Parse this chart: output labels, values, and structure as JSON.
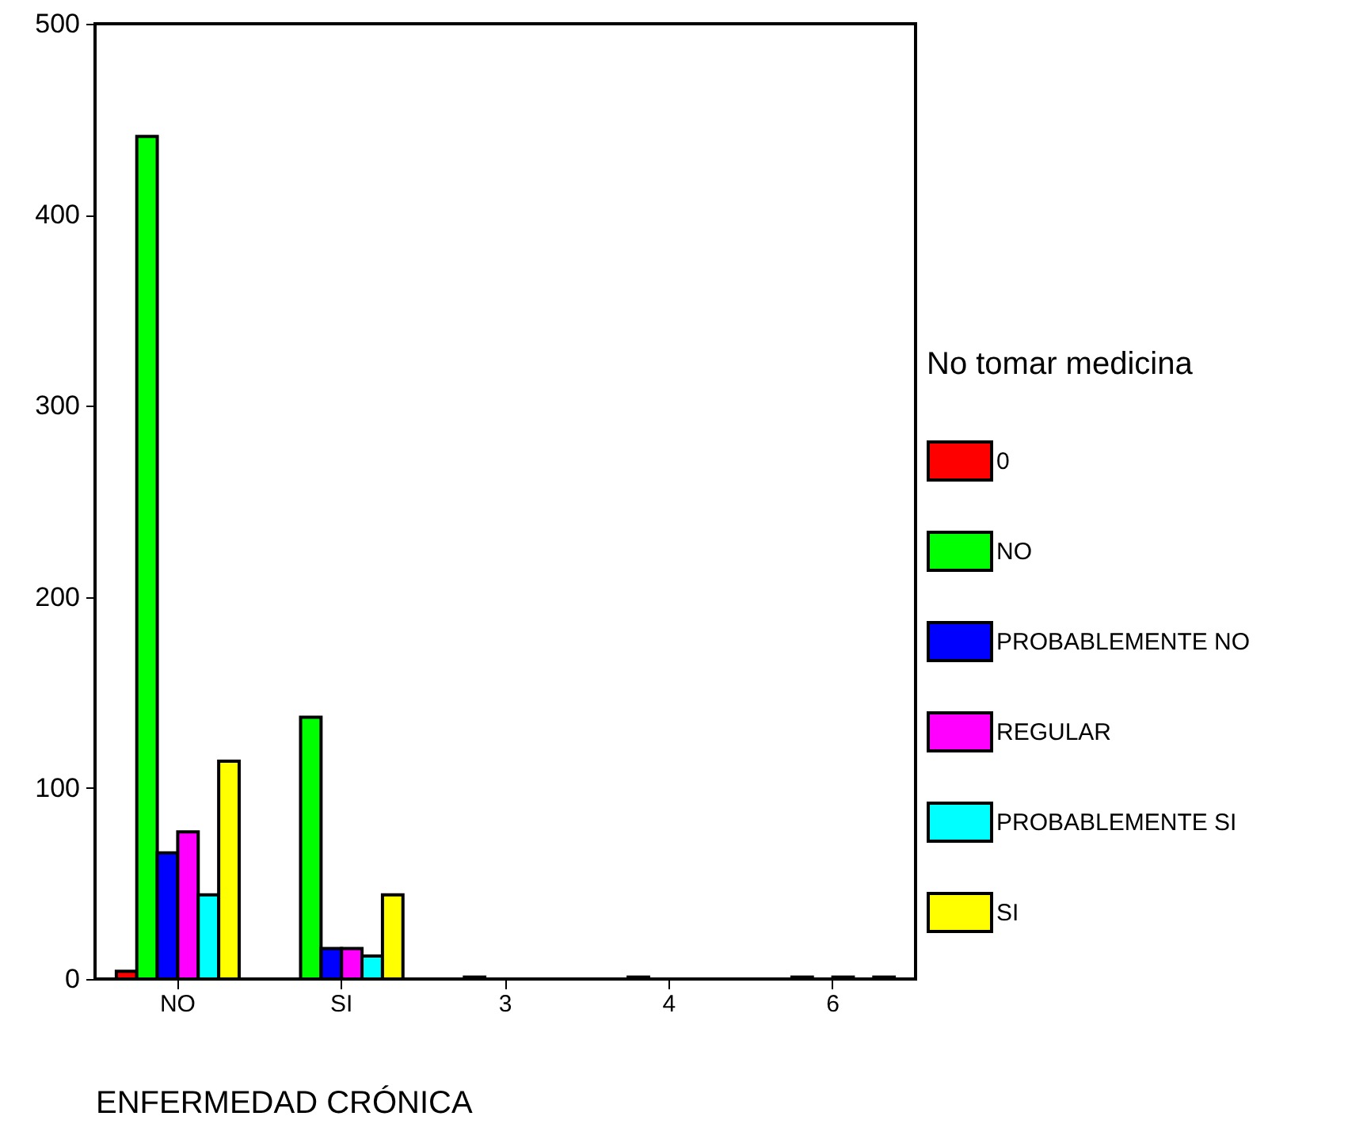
{
  "chart_data": {
    "type": "bar",
    "xlabel": "ENFERMEDAD CRÓNICA",
    "legend_title": "No tomar medicina",
    "categories": [
      "NO",
      "SI",
      "3",
      "4",
      "6"
    ],
    "series": [
      {
        "name": "0",
        "color": "#ff0000",
        "values": [
          4,
          null,
          null,
          null,
          null
        ]
      },
      {
        "name": "NO",
        "color": "#00ff00",
        "values": [
          441,
          137,
          1,
          1,
          1
        ]
      },
      {
        "name": "PROBABLEMENTE NO",
        "color": "#0000ff",
        "values": [
          66,
          16,
          null,
          null,
          null
        ]
      },
      {
        "name": "REGULAR",
        "color": "#ff00ff",
        "values": [
          77,
          16,
          null,
          null,
          1
        ]
      },
      {
        "name": "PROBABLEMENTE SI",
        "color": "#00ffff",
        "values": [
          44,
          12,
          null,
          null,
          null
        ]
      },
      {
        "name": "SI",
        "color": "#ffff00",
        "values": [
          114,
          44,
          null,
          null,
          1
        ]
      }
    ],
    "ylim": [
      0,
      500
    ],
    "yticks": [
      0,
      100,
      200,
      300,
      400,
      500
    ],
    "grid": false,
    "legend": "right"
  }
}
